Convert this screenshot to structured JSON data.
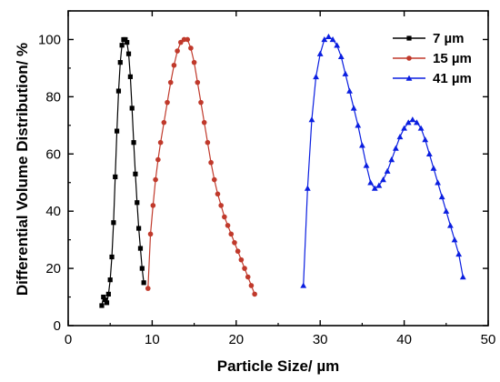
{
  "chart_data": {
    "type": "line",
    "xlabel": "Particle Size/ µm",
    "ylabel": "Differential Volume Distribution/ %",
    "xlim": [
      0,
      50
    ],
    "ylim": [
      0,
      110
    ],
    "xticks": [
      0,
      10,
      20,
      30,
      40,
      50
    ],
    "yticks": [
      0,
      20,
      40,
      60,
      80,
      100
    ],
    "grid": false,
    "legend_position": "top-right",
    "series": [
      {
        "name": "7 µm",
        "color": "#000000",
        "marker": "square",
        "x": [
          4.0,
          4.2,
          4.4,
          4.6,
          4.8,
          5.0,
          5.2,
          5.4,
          5.6,
          5.8,
          6.0,
          6.2,
          6.4,
          6.6,
          6.8,
          7.0,
          7.2,
          7.4,
          7.6,
          7.8,
          8.0,
          8.2,
          8.4,
          8.6,
          8.8,
          9.0
        ],
        "values": [
          7,
          10,
          9,
          8,
          11,
          16,
          24,
          36,
          52,
          68,
          82,
          92,
          98,
          100,
          100,
          99,
          95,
          87,
          76,
          64,
          53,
          43,
          34,
          27,
          20,
          15
        ]
      },
      {
        "name": "15 µm",
        "color": "#c0392b",
        "marker": "circle",
        "x": [
          9.5,
          9.8,
          10.1,
          10.4,
          10.7,
          11.0,
          11.4,
          11.8,
          12.2,
          12.6,
          13.0,
          13.4,
          13.8,
          14.2,
          14.6,
          15.0,
          15.4,
          15.8,
          16.2,
          16.6,
          17.0,
          17.4,
          17.8,
          18.2,
          18.6,
          19.0,
          19.4,
          19.8,
          20.2,
          20.6,
          21.0,
          21.4,
          21.8,
          22.2
        ],
        "values": [
          13,
          32,
          42,
          51,
          58,
          64,
          71,
          78,
          85,
          91,
          96,
          99,
          100,
          100,
          97,
          92,
          85,
          78,
          71,
          64,
          57,
          51,
          46,
          42,
          38,
          35,
          32,
          29,
          26,
          23,
          20,
          17,
          14,
          11
        ]
      },
      {
        "name": "41 µm",
        "color": "#0a1ee0",
        "marker": "triangle",
        "x": [
          28.0,
          28.5,
          29.0,
          29.5,
          30.0,
          30.5,
          31.0,
          31.5,
          32.0,
          32.5,
          33.0,
          33.5,
          34.0,
          34.5,
          35.0,
          35.5,
          36.0,
          36.5,
          37.0,
          37.5,
          38.0,
          38.5,
          39.0,
          39.5,
          40.0,
          40.5,
          41.0,
          41.5,
          42.0,
          42.5,
          43.0,
          43.5,
          44.0,
          44.5,
          45.0,
          45.5,
          46.0,
          46.5,
          47.0
        ],
        "values": [
          14,
          48,
          72,
          87,
          95,
          100,
          101,
          100,
          98,
          94,
          88,
          82,
          76,
          70,
          63,
          56,
          50,
          48,
          49,
          51,
          54,
          58,
          62,
          66,
          69,
          71,
          72,
          71,
          69,
          65,
          60,
          55,
          50,
          45,
          40,
          35,
          30,
          25,
          17
        ]
      }
    ]
  }
}
